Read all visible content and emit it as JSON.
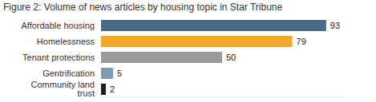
{
  "chart_data": {
    "type": "bar",
    "title": "Figure 2: Volume of news articles by housing topic in Star Tribune",
    "orientation": "horizontal",
    "categories": [
      "Affordable housing",
      "Homelessness",
      "Tenant protections",
      "Gentrification",
      "Community land trust"
    ],
    "values": [
      93,
      79,
      50,
      5,
      2
    ],
    "colors": [
      "#4a6a86",
      "#f3a72a",
      "#9a9a9a",
      "#7e9bb4",
      "#1e1e1e"
    ],
    "xlim": [
      0,
      100
    ],
    "xticks": [],
    "data_labels": true,
    "tick_labels": "y",
    "grid": false
  }
}
